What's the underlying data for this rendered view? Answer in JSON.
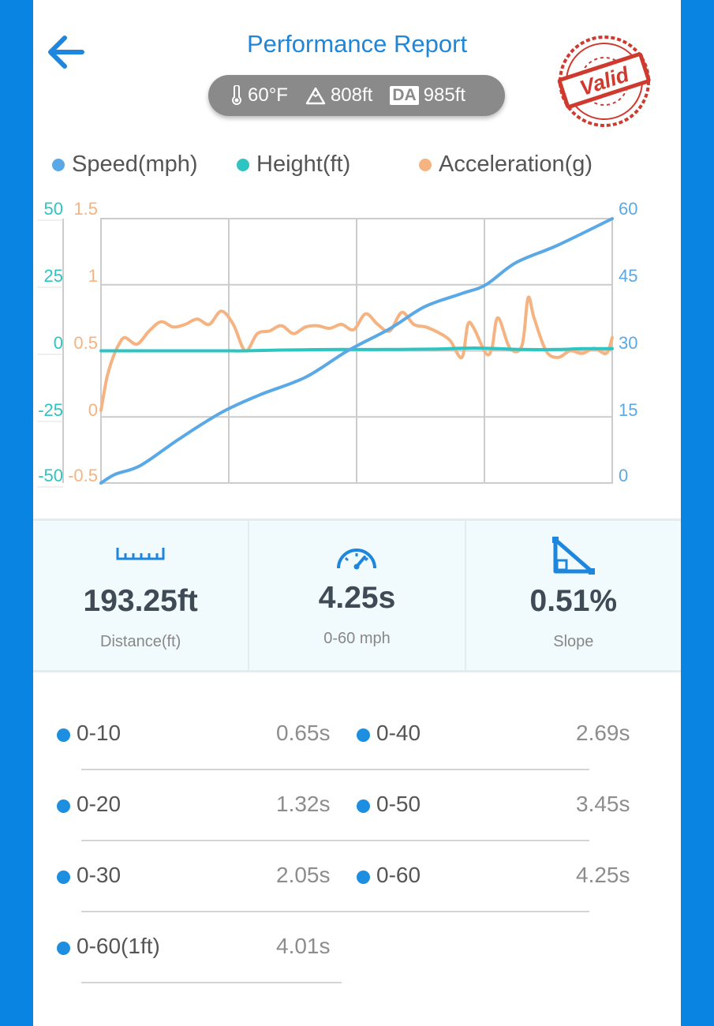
{
  "header": {
    "title": "Performance Report",
    "back_icon": "arrow-left-icon",
    "conditions": {
      "temperature": "60°F",
      "altitude": "808ft",
      "da_label": "DA",
      "density_altitude": "985ft"
    },
    "stamp_text": "Valid"
  },
  "legend": [
    {
      "label": "Speed(mph)",
      "color": "#5aa9e6"
    },
    {
      "label": "Height(ft)",
      "color": "#2ec4c2"
    },
    {
      "label": "Acceleration(g)",
      "color": "#f6b382"
    }
  ],
  "chart_data": {
    "type": "line",
    "grid": true,
    "legend_position": "top",
    "x_range": [
      0,
      4.25
    ],
    "axes": {
      "height": {
        "side": "left-outer",
        "ticks": [
          "50",
          "25",
          "0",
          "-25",
          "-50"
        ],
        "range": [
          -50,
          50
        ],
        "color": "#2ec4c2"
      },
      "acceleration": {
        "side": "left-inner",
        "ticks": [
          "1.5",
          "1",
          "0.5",
          "0",
          "-0.5"
        ],
        "range": [
          -0.5,
          1.5
        ],
        "color": "#f6b382"
      },
      "speed": {
        "side": "right",
        "ticks": [
          "60",
          "45",
          "30",
          "15",
          "0"
        ],
        "range": [
          0,
          60
        ],
        "color": "#5aa9e6"
      }
    },
    "series": [
      {
        "name": "Speed(mph)",
        "axis": "speed",
        "color": "#5aa9e6",
        "x": [
          0,
          0.12,
          0.33,
          0.65,
          1.0,
          1.32,
          1.7,
          2.05,
          2.4,
          2.69,
          3.0,
          3.2,
          3.45,
          3.8,
          4.25
        ],
        "y": [
          0,
          2,
          4,
          10,
          16,
          20,
          24,
          30,
          35,
          40,
          43,
          45,
          50,
          54,
          60
        ]
      },
      {
        "name": "Height(ft)",
        "axis": "height",
        "color": "#2ec4c2",
        "x": [
          0,
          0.5,
          1.0,
          1.2,
          1.5,
          2.0,
          2.4,
          2.8,
          3.0,
          3.2,
          3.5,
          3.8,
          4.0,
          4.25
        ],
        "y": [
          0,
          0,
          0,
          0,
          0.3,
          0.5,
          0.5,
          0.7,
          1.0,
          1.0,
          0.5,
          0.5,
          0.8,
          0.8
        ]
      },
      {
        "name": "Acceleration(g)",
        "axis": "acceleration",
        "color": "#f6b382",
        "x": [
          0,
          0.05,
          0.1,
          0.15,
          0.2,
          0.3,
          0.4,
          0.5,
          0.6,
          0.7,
          0.8,
          0.9,
          1.0,
          1.1,
          1.2,
          1.3,
          1.4,
          1.5,
          1.6,
          1.7,
          1.8,
          1.9,
          2.0,
          2.1,
          2.2,
          2.3,
          2.4,
          2.5,
          2.6,
          2.7,
          2.8,
          2.9,
          3.0,
          3.05,
          3.1,
          3.2,
          3.25,
          3.3,
          3.4,
          3.5,
          3.55,
          3.6,
          3.7,
          3.8,
          3.9,
          4.0,
          4.1,
          4.2,
          4.25
        ],
        "y": [
          0.05,
          0.3,
          0.45,
          0.55,
          0.6,
          0.55,
          0.65,
          0.72,
          0.68,
          0.7,
          0.74,
          0.7,
          0.8,
          0.7,
          0.5,
          0.63,
          0.65,
          0.69,
          0.63,
          0.68,
          0.69,
          0.67,
          0.7,
          0.66,
          0.78,
          0.7,
          0.65,
          0.79,
          0.7,
          0.68,
          0.64,
          0.58,
          0.45,
          0.7,
          0.67,
          0.48,
          0.52,
          0.75,
          0.52,
          0.54,
          0.9,
          0.75,
          0.5,
          0.45,
          0.5,
          0.48,
          0.52,
          0.48,
          0.6
        ]
      }
    ]
  },
  "stats": [
    {
      "icon": "ruler-icon",
      "value": "193.25ft",
      "label": "Distance(ft)"
    },
    {
      "icon": "speedometer-icon",
      "value": "4.25s",
      "label": "0-60 mph"
    },
    {
      "icon": "slope-icon",
      "value": "0.51%",
      "label": "Slope"
    }
  ],
  "splits": [
    {
      "range": "0-10",
      "time": "0.65s"
    },
    {
      "range": "0-40",
      "time": "2.69s"
    },
    {
      "range": "0-20",
      "time": "1.32s"
    },
    {
      "range": "0-50",
      "time": "3.45s"
    },
    {
      "range": "0-30",
      "time": "2.05s"
    },
    {
      "range": "0-60",
      "time": "4.25s"
    },
    {
      "range": "0-60(1ft)",
      "time": "4.01s"
    }
  ]
}
